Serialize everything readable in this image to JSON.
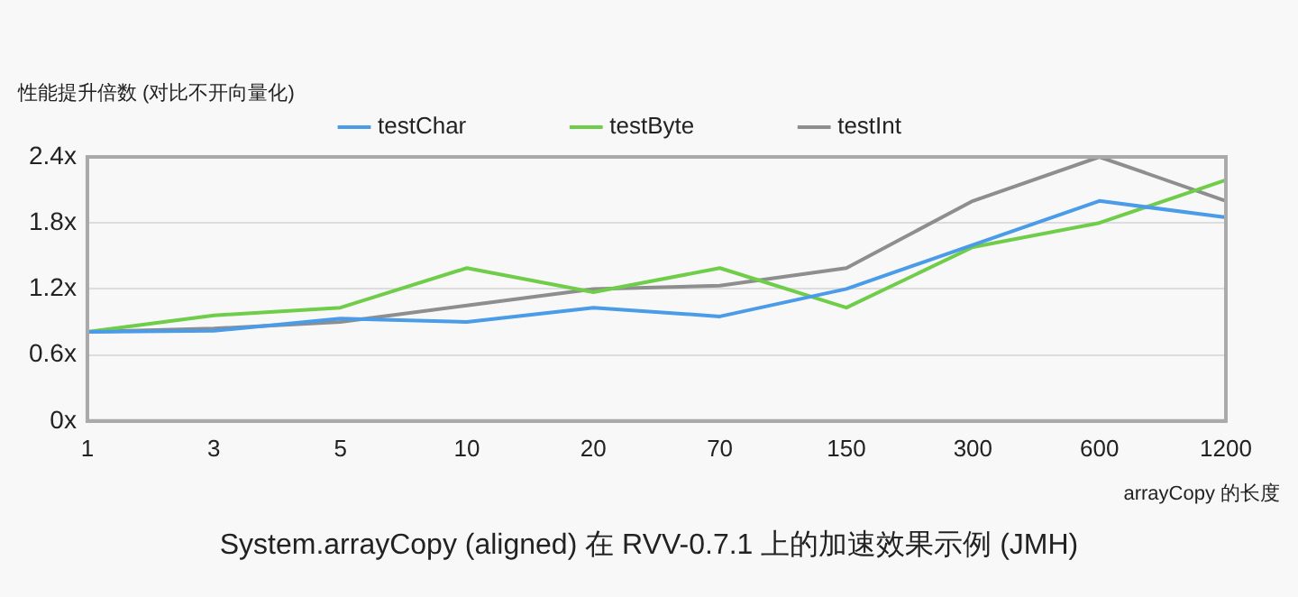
{
  "chart_data": {
    "type": "line",
    "title": "System.arrayCopy (aligned) 在 RVV-0.7.1 上的加速效果示例 (JMH)",
    "xlabel": "arrayCopy 的长度",
    "ylabel": "性能提升倍数 (对比不开向量化)",
    "categories": [
      "1",
      "3",
      "5",
      "10",
      "20",
      "70",
      "150",
      "300",
      "600",
      "1200"
    ],
    "series": [
      {
        "name": "testChar",
        "color": "#4a9be8",
        "values": [
          0.81,
          0.82,
          0.93,
          0.9,
          1.03,
          0.95,
          1.2,
          1.6,
          2.0,
          1.85
        ]
      },
      {
        "name": "testByte",
        "color": "#6fcd4a",
        "values": [
          0.81,
          0.96,
          1.03,
          1.39,
          1.17,
          1.39,
          1.03,
          1.58,
          1.8,
          2.19
        ]
      },
      {
        "name": "testInt",
        "color": "#8e8e8e",
        "values": [
          0.81,
          0.84,
          0.9,
          1.05,
          1.2,
          1.23,
          1.39,
          2.0,
          2.4,
          2.0
        ]
      }
    ],
    "ylim": [
      0,
      2.4
    ],
    "yticks": [
      {
        "value": 0,
        "label": "0x"
      },
      {
        "value": 0.6,
        "label": "0.6x"
      },
      {
        "value": 1.2,
        "label": "1.2x"
      },
      {
        "value": 1.8,
        "label": "1.8x"
      },
      {
        "value": 2.4,
        "label": "2.4x"
      }
    ],
    "grid": "y",
    "legend": "top",
    "marker": "none",
    "line_style": "solid"
  }
}
